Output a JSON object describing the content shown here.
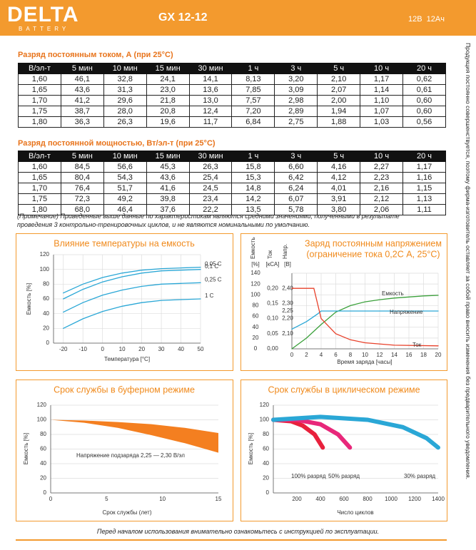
{
  "header": {
    "brand": "DELTA",
    "brand_sub": "BATTERY",
    "model": "GX 12-12",
    "spec": "12В  12Ач"
  },
  "tables": [
    {
      "title": "Разряд постоянным током, А (при 25°С)",
      "columns": [
        "В/эл-т",
        "5 мин",
        "10 мин",
        "15 мин",
        "30 мин",
        "1 ч",
        "3 ч",
        "5 ч",
        "10 ч",
        "20 ч"
      ],
      "rows": [
        [
          "1,60",
          "46,1",
          "32,8",
          "24,1",
          "14,1",
          "8,13",
          "3,20",
          "2,10",
          "1,17",
          "0,62"
        ],
        [
          "1,65",
          "43,6",
          "31,3",
          "23,0",
          "13,6",
          "7,85",
          "3,09",
          "2,07",
          "1,14",
          "0,61"
        ],
        [
          "1,70",
          "41,2",
          "29,6",
          "21,8",
          "13,0",
          "7,57",
          "2,98",
          "2,00",
          "1,10",
          "0,60"
        ],
        [
          "1,75",
          "38,7",
          "28,0",
          "20,8",
          "12,4",
          "7,20",
          "2,89",
          "1,94",
          "1,07",
          "0,60"
        ],
        [
          "1,80",
          "36,3",
          "26,3",
          "19,6",
          "11,7",
          "6,84",
          "2,75",
          "1,88",
          "1,03",
          "0,56"
        ]
      ]
    },
    {
      "title": "Разряд постоянной мощностью, Вт/эл-т (при 25°С)",
      "columns": [
        "В/эл-т",
        "5 мин",
        "10 мин",
        "15 мин",
        "30 мин",
        "1 ч",
        "3 ч",
        "5 ч",
        "10 ч",
        "20 ч"
      ],
      "rows": [
        [
          "1,60",
          "84,5",
          "56,6",
          "45,3",
          "26,3",
          "15,8",
          "6,60",
          "4,16",
          "2,27",
          "1,17"
        ],
        [
          "1,65",
          "80,4",
          "54,3",
          "43,6",
          "25,4",
          "15,3",
          "6,42",
          "4,12",
          "2,23",
          "1,16"
        ],
        [
          "1,70",
          "76,4",
          "51,7",
          "41,6",
          "24,5",
          "14,8",
          "6,24",
          "4,01",
          "2,16",
          "1,15"
        ],
        [
          "1,75",
          "72,3",
          "49,2",
          "39,8",
          "23,4",
          "14,2",
          "6,07",
          "3,91",
          "2,12",
          "1,13"
        ],
        [
          "1,80",
          "68,0",
          "46,4",
          "37,6",
          "22,2",
          "13,5",
          "5,78",
          "3,80",
          "2,06",
          "1,11"
        ]
      ]
    }
  ],
  "note": "(Примечание) Приведенные выше данные по характеристикам являются средними значениями, полученными в результате проведения 3 контрольно-тренировочных циклов, и не являются номинальными по умолчанию.",
  "charts": [
    {
      "type": "line",
      "title": "Влияние температуры на емкость",
      "xlabel": "Температура [°С]",
      "ylabel": "Емкость [%]",
      "xlim": [
        -25,
        50
      ],
      "ylim": [
        0,
        120
      ],
      "xticks": [
        -20,
        -10,
        0,
        10,
        20,
        30,
        40,
        50
      ],
      "yticks": [
        0,
        20,
        40,
        60,
        80,
        100,
        120
      ],
      "grid": true,
      "series": [
        {
          "name": "0,05 С",
          "color": "#2aa7d6",
          "x": [
            -20,
            -10,
            0,
            10,
            20,
            30,
            40,
            50
          ],
          "values": [
            68,
            80,
            89,
            95,
            99,
            101,
            102,
            103
          ]
        },
        {
          "name": "0,1 С",
          "color": "#2aa7d6",
          "x": [
            -20,
            -10,
            0,
            10,
            20,
            30,
            40,
            50
          ],
          "values": [
            60,
            73,
            83,
            90,
            95,
            98,
            99,
            100
          ]
        },
        {
          "name": "0,25 С",
          "color": "#2aa7d6",
          "x": [
            -20,
            -10,
            0,
            10,
            20,
            30,
            40,
            50
          ],
          "values": [
            42,
            55,
            65,
            72,
            77,
            80,
            81,
            82
          ]
        },
        {
          "name": "1 С",
          "color": "#2aa7d6",
          "x": [
            -20,
            -10,
            0,
            10,
            20,
            30,
            40,
            50
          ],
          "values": [
            20,
            33,
            43,
            50,
            55,
            58,
            59,
            60
          ]
        }
      ]
    },
    {
      "type": "line",
      "title": "Заряд постоянным напряжением",
      "subtitle": "(ограничение тока 0,2С А, 25°С)",
      "xlabel": "Время заряда [часы]",
      "xlim": [
        0,
        20
      ],
      "xticks": [
        0,
        2,
        4,
        6,
        8,
        10,
        12,
        14,
        16,
        18,
        20
      ],
      "grid": true,
      "yaxes": [
        {
          "label": "Емкость",
          "unit": "[%]",
          "ylim": [
            0,
            140
          ],
          "yticks": [
            0,
            20,
            40,
            60,
            80,
            100,
            120,
            140
          ]
        },
        {
          "label": "Ток",
          "unit": "[кСА]",
          "ylim": [
            0,
            0.25
          ],
          "yticks": [
            {
              "value": 0,
              "label": "0,00"
            },
            {
              "value": 0.05,
              "label": "0,05"
            },
            {
              "value": 0.1,
              "label": "0,10"
            },
            {
              "value": 0.15,
              "label": "0,15"
            },
            {
              "value": 0.2,
              "label": "0,20"
            }
          ]
        },
        {
          "label": "Напр.",
          "unit": "[B]",
          "ylim": [
            2.0,
            2.5
          ],
          "yticks": [
            {
              "value": 2.1,
              "label": "2,10"
            },
            {
              "value": 2.2,
              "label": "2,20"
            },
            {
              "value": 2.25,
              "label": "2,25"
            },
            {
              "value": 2.3,
              "label": "2,30"
            },
            {
              "value": 2.4,
              "label": "2,40"
            }
          ]
        }
      ],
      "series": [
        {
          "name": "Емкость",
          "color": "#3aa03a",
          "axis": 0,
          "x": [
            0,
            2,
            4,
            6,
            8,
            10,
            12,
            14,
            16,
            18,
            20
          ],
          "values": [
            0,
            20,
            45,
            68,
            80,
            87,
            91,
            94,
            96,
            98,
            99
          ]
        },
        {
          "name": "Напряжение",
          "color": "#2aa7d6",
          "axis": 2,
          "x": [
            0,
            2,
            3.5,
            4,
            20
          ],
          "values": [
            2.13,
            2.18,
            2.23,
            2.25,
            2.25
          ]
        },
        {
          "name": "Ток",
          "color": "#e8402a",
          "axis": 1,
          "x": [
            0,
            3,
            3.5,
            4,
            6,
            8,
            10,
            14,
            20
          ],
          "values": [
            0.2,
            0.2,
            0.15,
            0.1,
            0.05,
            0.03,
            0.02,
            0.012,
            0.01
          ]
        }
      ]
    },
    {
      "type": "area",
      "title": "Срок службы в буферном режиме",
      "xlabel": "Срок службы (лет)",
      "ylabel": "Емкость [%]",
      "annotation": "Напряжение подзаряда 2,25 — 2,30 В/эл",
      "xlim": [
        0,
        15
      ],
      "ylim": [
        0,
        120
      ],
      "xticks": [
        0,
        5,
        10,
        15
      ],
      "yticks": [
        0,
        20,
        40,
        60,
        80,
        100,
        120
      ],
      "grid": true,
      "color": "#f47f20",
      "upper": {
        "x": [
          0,
          3,
          6,
          9,
          12,
          15
        ],
        "values": [
          100,
          99,
          97,
          94,
          89,
          82
        ]
      },
      "lower": {
        "x": [
          0,
          3,
          6,
          9,
          12,
          15
        ],
        "values": [
          100,
          96,
          89,
          79,
          68,
          55
        ]
      }
    },
    {
      "type": "line",
      "title": "Срок службы в циклическом режиме",
      "xlabel": "Число циклов",
      "ylabel": "Емкость [%]",
      "xlim": [
        0,
        1400
      ],
      "ylim": [
        0,
        120
      ],
      "xticks": [
        200,
        400,
        600,
        800,
        1000,
        1200,
        1400
      ],
      "yticks": [
        0,
        20,
        40,
        60,
        80,
        100,
        120
      ],
      "grid": true,
      "thick": true,
      "series": [
        {
          "name": "100% разряд",
          "color": "#e8213c",
          "x": [
            0,
            150,
            250,
            350,
            420
          ],
          "values": [
            100,
            98,
            92,
            80,
            62
          ]
        },
        {
          "name": "50% разряд",
          "color": "#e8277a",
          "x": [
            0,
            200,
            400,
            550,
            650
          ],
          "values": [
            100,
            100,
            94,
            80,
            62
          ]
        },
        {
          "name": "30% разряд",
          "color": "#2aa7d6",
          "x": [
            0,
            400,
            800,
            1100,
            1300,
            1400
          ],
          "values": [
            100,
            104,
            100,
            90,
            75,
            62
          ]
        }
      ]
    }
  ],
  "footer": "Перед началом использования внимательно ознакомьтесь с инструкцией по эксплуатации.",
  "side_text": "Продукция постоянно совершенствуется, поэтому фирма-изготовитель оставляет за собой право вносить изменения без предварительного уведомления."
}
